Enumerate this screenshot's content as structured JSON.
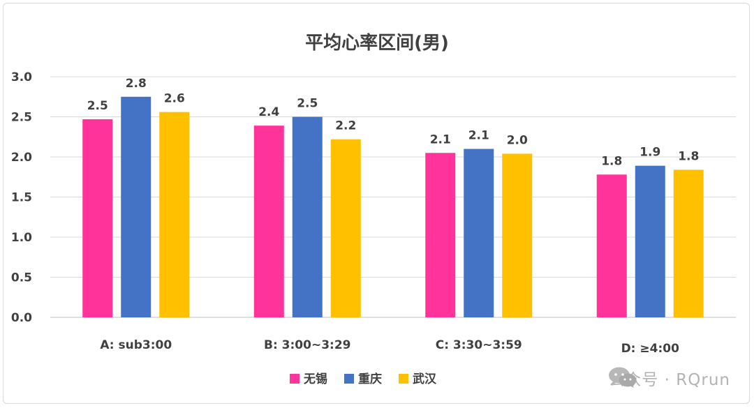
{
  "chart_data": {
    "type": "bar",
    "title": "平均心率区间(男)",
    "categories": [
      "A: sub3:00",
      "B: 3:00~3:29",
      "C: 3:30~3:59",
      "D: ≥4:00"
    ],
    "series": [
      {
        "name": "无锡",
        "color": "#FF3399",
        "values": [
          2.47,
          2.39,
          2.05,
          1.78
        ],
        "labels": [
          "2.5",
          "2.4",
          "2.1",
          "1.8"
        ]
      },
      {
        "name": "重庆",
        "color": "#4472C4",
        "values": [
          2.75,
          2.5,
          2.1,
          1.89
        ],
        "labels": [
          "2.8",
          "2.5",
          "2.1",
          "1.9"
        ]
      },
      {
        "name": "武汉",
        "color": "#FFC000",
        "values": [
          2.56,
          2.22,
          2.04,
          1.84
        ],
        "labels": [
          "2.6",
          "2.2",
          "2.0",
          "1.8"
        ]
      }
    ],
    "ylim": [
      0,
      3.0
    ],
    "yticks": [
      "0.0",
      "0.5",
      "1.0",
      "1.5",
      "2.0",
      "2.5",
      "3.0"
    ],
    "grid": true,
    "legend_position": "bottom"
  },
  "watermark": {
    "text": "公众号 · RQrun",
    "icon": "wechat-icon"
  }
}
